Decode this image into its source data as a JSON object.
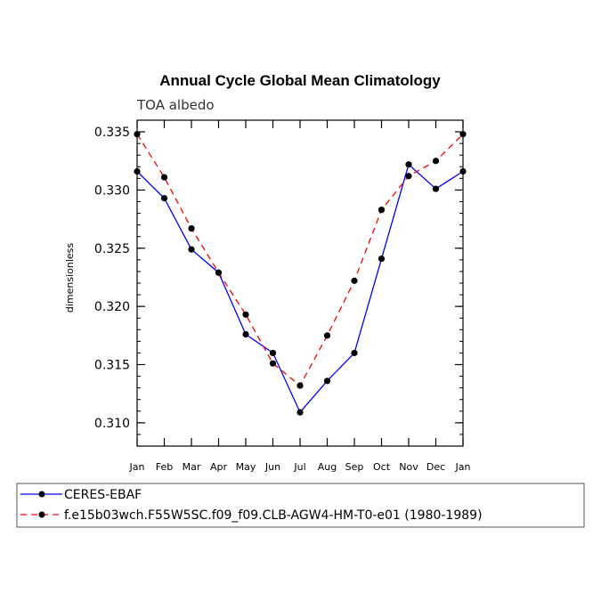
{
  "chart_data": {
    "type": "line",
    "title": "Annual Cycle Global Mean Climatology",
    "subtitle": "TOA albedo",
    "xlabel": "",
    "ylabel": "dimensionless",
    "categories": [
      "Jan",
      "Feb",
      "Mar",
      "Apr",
      "May",
      "Jun",
      "Jul",
      "Aug",
      "Sep",
      "Oct",
      "Nov",
      "Dec",
      "Jan"
    ],
    "ylim": [
      0.308,
      0.336
    ],
    "yticks": [
      "0.310",
      "0.315",
      "0.320",
      "0.325",
      "0.330",
      "0.335"
    ],
    "legend_placement": "bottom",
    "series": [
      {
        "name": "CERES-EBAF",
        "color": "#0000ff",
        "dash": "solid",
        "values": [
          0.3316,
          0.3293,
          0.3249,
          0.3229,
          0.3176,
          0.316,
          0.3109,
          0.3136,
          0.316,
          0.3241,
          0.3322,
          0.3301,
          0.3316
        ]
      },
      {
        "name": "f.e15b03wch.F55W5SC.f09_f09.CLB-AGW4-HM-T0-e01 (1980-1989)",
        "color": "#ff0000",
        "dash": "dashed",
        "values": [
          0.3348,
          0.3311,
          0.3267,
          0.3229,
          0.3193,
          0.3151,
          0.3132,
          0.3175,
          0.3222,
          0.3283,
          0.3312,
          0.3325,
          0.3348
        ]
      }
    ]
  }
}
